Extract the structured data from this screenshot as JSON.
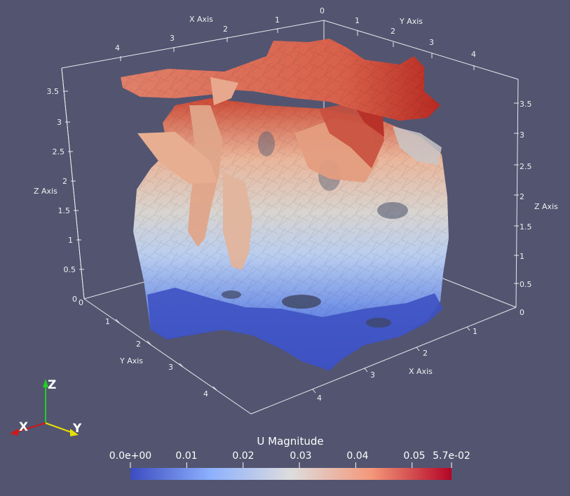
{
  "scene": {
    "background_color": "#525470",
    "field_name": "U Magnitude",
    "colormap": "Cool to Warm",
    "colormap_colors": [
      "#3b4cc0",
      "#8db0fe",
      "#dddddd",
      "#f4987a",
      "#b40426"
    ],
    "range": [
      "0.0e+00",
      "5.7e-02"
    ]
  },
  "axes": {
    "x_axis_title": "X Axis",
    "y_axis_title": "Y Axis",
    "z_axis_title": "Z Axis",
    "x_top_ticks": [
      "4",
      "3",
      "2",
      "1",
      "0"
    ],
    "y_top_ticks": [
      "1",
      "2",
      "3",
      "4"
    ],
    "y_left_ticks": [
      "0",
      "1",
      "2",
      "3",
      "4"
    ],
    "x_bottom_ticks": [
      "1",
      "2",
      "3",
      "4"
    ],
    "z_left_ticks": [
      "0",
      "0.5",
      "1",
      "1.5",
      "2",
      "2.5",
      "3",
      "3.5"
    ],
    "z_right_ticks": [
      "0",
      "0.5",
      "1",
      "1.5",
      "2",
      "2.5",
      "3",
      "3.5"
    ]
  },
  "legend": {
    "title": "U Magnitude",
    "tick_labels": [
      "0.0e+00",
      "0.01",
      "0.02",
      "0.03",
      "0.04",
      "0.05",
      "5.7e-02"
    ],
    "tick_values": [
      0.0,
      0.01,
      0.02,
      0.03,
      0.04,
      0.05,
      0.057
    ]
  },
  "orientation_triad": {
    "x_label": "X",
    "y_label": "Y",
    "z_label": "Z",
    "x_color": "#d01818",
    "y_color": "#e8e000",
    "z_color": "#20d020"
  }
}
